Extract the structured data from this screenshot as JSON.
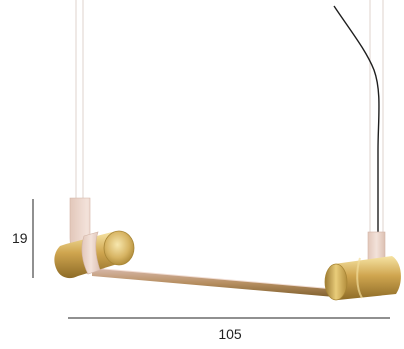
{
  "dimensions": {
    "height_label": "19",
    "width_label": "105"
  },
  "colors": {
    "brass": "#c9a24e",
    "brass_light": "#f1d98a",
    "brass_dark": "#8a6a26",
    "bracket": "#ecd6cc",
    "cable": "#ddd3cf",
    "power_cord": "#222222",
    "dimension_line": "#222222"
  }
}
